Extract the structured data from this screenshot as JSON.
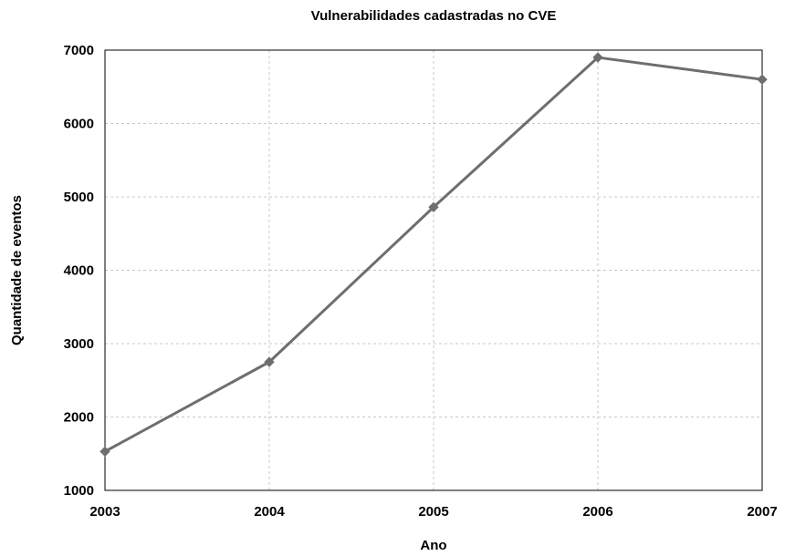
{
  "chart_data": {
    "type": "line",
    "title": "Vulnerabilidades cadastradas no CVE",
    "xlabel": "Ano",
    "ylabel": "Quantidade de eventos",
    "x": [
      2003,
      2004,
      2005,
      2006,
      2007
    ],
    "x_tick_labels": [
      "2003",
      "2004",
      "2005",
      "2006",
      "2007"
    ],
    "y_tick_values": [
      1000,
      2000,
      3000,
      4000,
      5000,
      6000,
      7000
    ],
    "y_tick_labels": [
      "1000",
      "2000",
      "3000",
      "4000",
      "5000",
      "6000",
      "7000"
    ],
    "xlim": [
      2003,
      2007
    ],
    "ylim": [
      1000,
      7000
    ],
    "grid": true,
    "legend": false,
    "series": [
      {
        "values": [
          1530,
          2750,
          4860,
          6900,
          6600
        ],
        "color": "#6e6e6e",
        "marker": "diamond"
      }
    ]
  }
}
